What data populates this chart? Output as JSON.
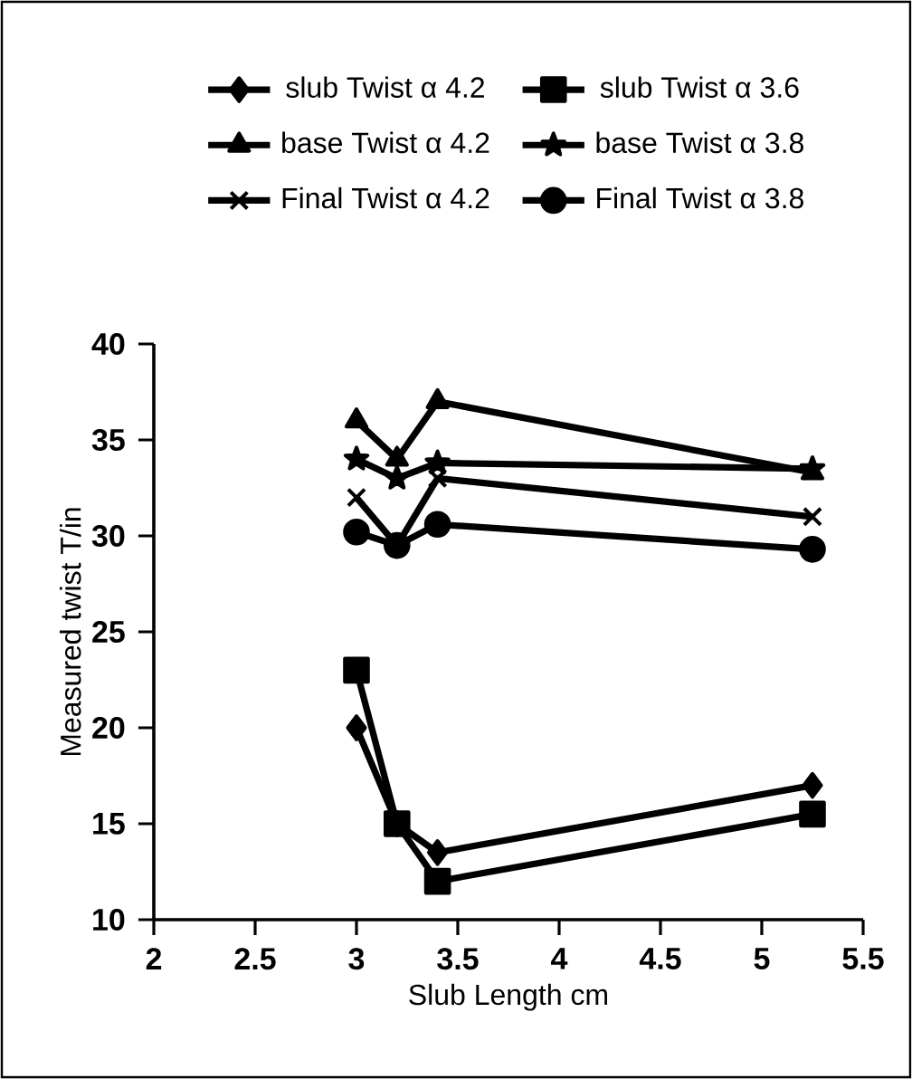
{
  "chart_data": {
    "type": "line",
    "xlabel": "Slub Length cm",
    "ylabel": "Measured twist T/in",
    "x": [
      3,
      3.2,
      3.4,
      5.25
    ],
    "series": [
      {
        "name": "slub Twist α 4.2",
        "color": "#000000",
        "marker": "diamond",
        "values": [
          20,
          15,
          13.5,
          17
        ]
      },
      {
        "name": "slub Twist α 3.6",
        "color": "#000000",
        "marker": "square",
        "values": [
          23,
          15,
          12,
          15.5
        ]
      },
      {
        "name": "base Twist α 4.2",
        "color": "#000000",
        "marker": "triangle",
        "values": [
          36,
          34,
          37,
          33.3
        ]
      },
      {
        "name": "base Twist α 3.8",
        "color": "#000000",
        "marker": "star",
        "values": [
          34,
          33,
          33.8,
          33.5
        ]
      },
      {
        "name": "Final Twist α 4.2",
        "color": "#000000",
        "marker": "cross",
        "values": [
          32,
          29.5,
          33,
          31
        ]
      },
      {
        "name": "Final Twist α 3.8",
        "color": "#000000",
        "marker": "circle",
        "values": [
          30.2,
          29.5,
          30.6,
          29.3
        ]
      }
    ],
    "xlim": [
      2,
      5.5
    ],
    "xticks": [
      2,
      2.5,
      3,
      3.5,
      4,
      4.5,
      5,
      5.5
    ],
    "ylim": [
      10,
      40
    ],
    "yticks": [
      10,
      15,
      20,
      25,
      30,
      35,
      40
    ],
    "grid": false,
    "legend": "top",
    "line_style": "solid"
  }
}
